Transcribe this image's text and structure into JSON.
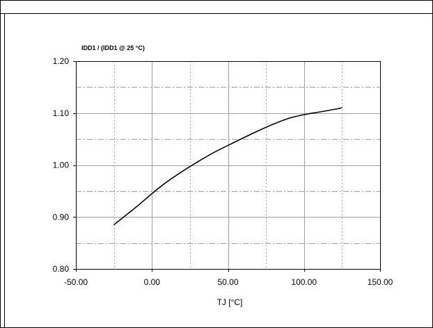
{
  "chart_data": {
    "type": "line",
    "title": "",
    "ylabel": "IDD1 / (IDD1 @ 25 °C)",
    "xlabel": "TJ [°C]",
    "xlim": [
      -50,
      150
    ],
    "ylim": [
      0.8,
      1.2
    ],
    "x_ticks": [
      -50,
      0,
      50,
      100,
      150
    ],
    "x_tick_labels": [
      "-50.00",
      "0.00",
      "50.00",
      "100.00",
      "150.00"
    ],
    "x_minor_gridlines": [
      -25,
      25,
      75,
      125
    ],
    "y_ticks": [
      0.8,
      0.9,
      1.0,
      1.1,
      1.2
    ],
    "y_tick_labels": [
      "0.80",
      "0.90",
      "1.00",
      "1.10",
      "1.20"
    ],
    "y_minor_gridlines": [
      0.85,
      0.95,
      1.05,
      1.15
    ],
    "grid": true,
    "legend": "none",
    "series": [
      {
        "x": [
          -25,
          -10,
          0,
          10,
          25,
          40,
          55,
          70,
          80,
          90,
          100,
          112,
          125
        ],
        "y": [
          0.885,
          0.92,
          0.945,
          0.968,
          0.997,
          1.023,
          1.045,
          1.066,
          1.079,
          1.09,
          1.097,
          1.103,
          1.11
        ]
      }
    ],
    "colors": {
      "line": "#000000",
      "grid_major": "#a0a0a0",
      "grid_minor": "#a0a0a0",
      "frame": "#000000"
    }
  }
}
